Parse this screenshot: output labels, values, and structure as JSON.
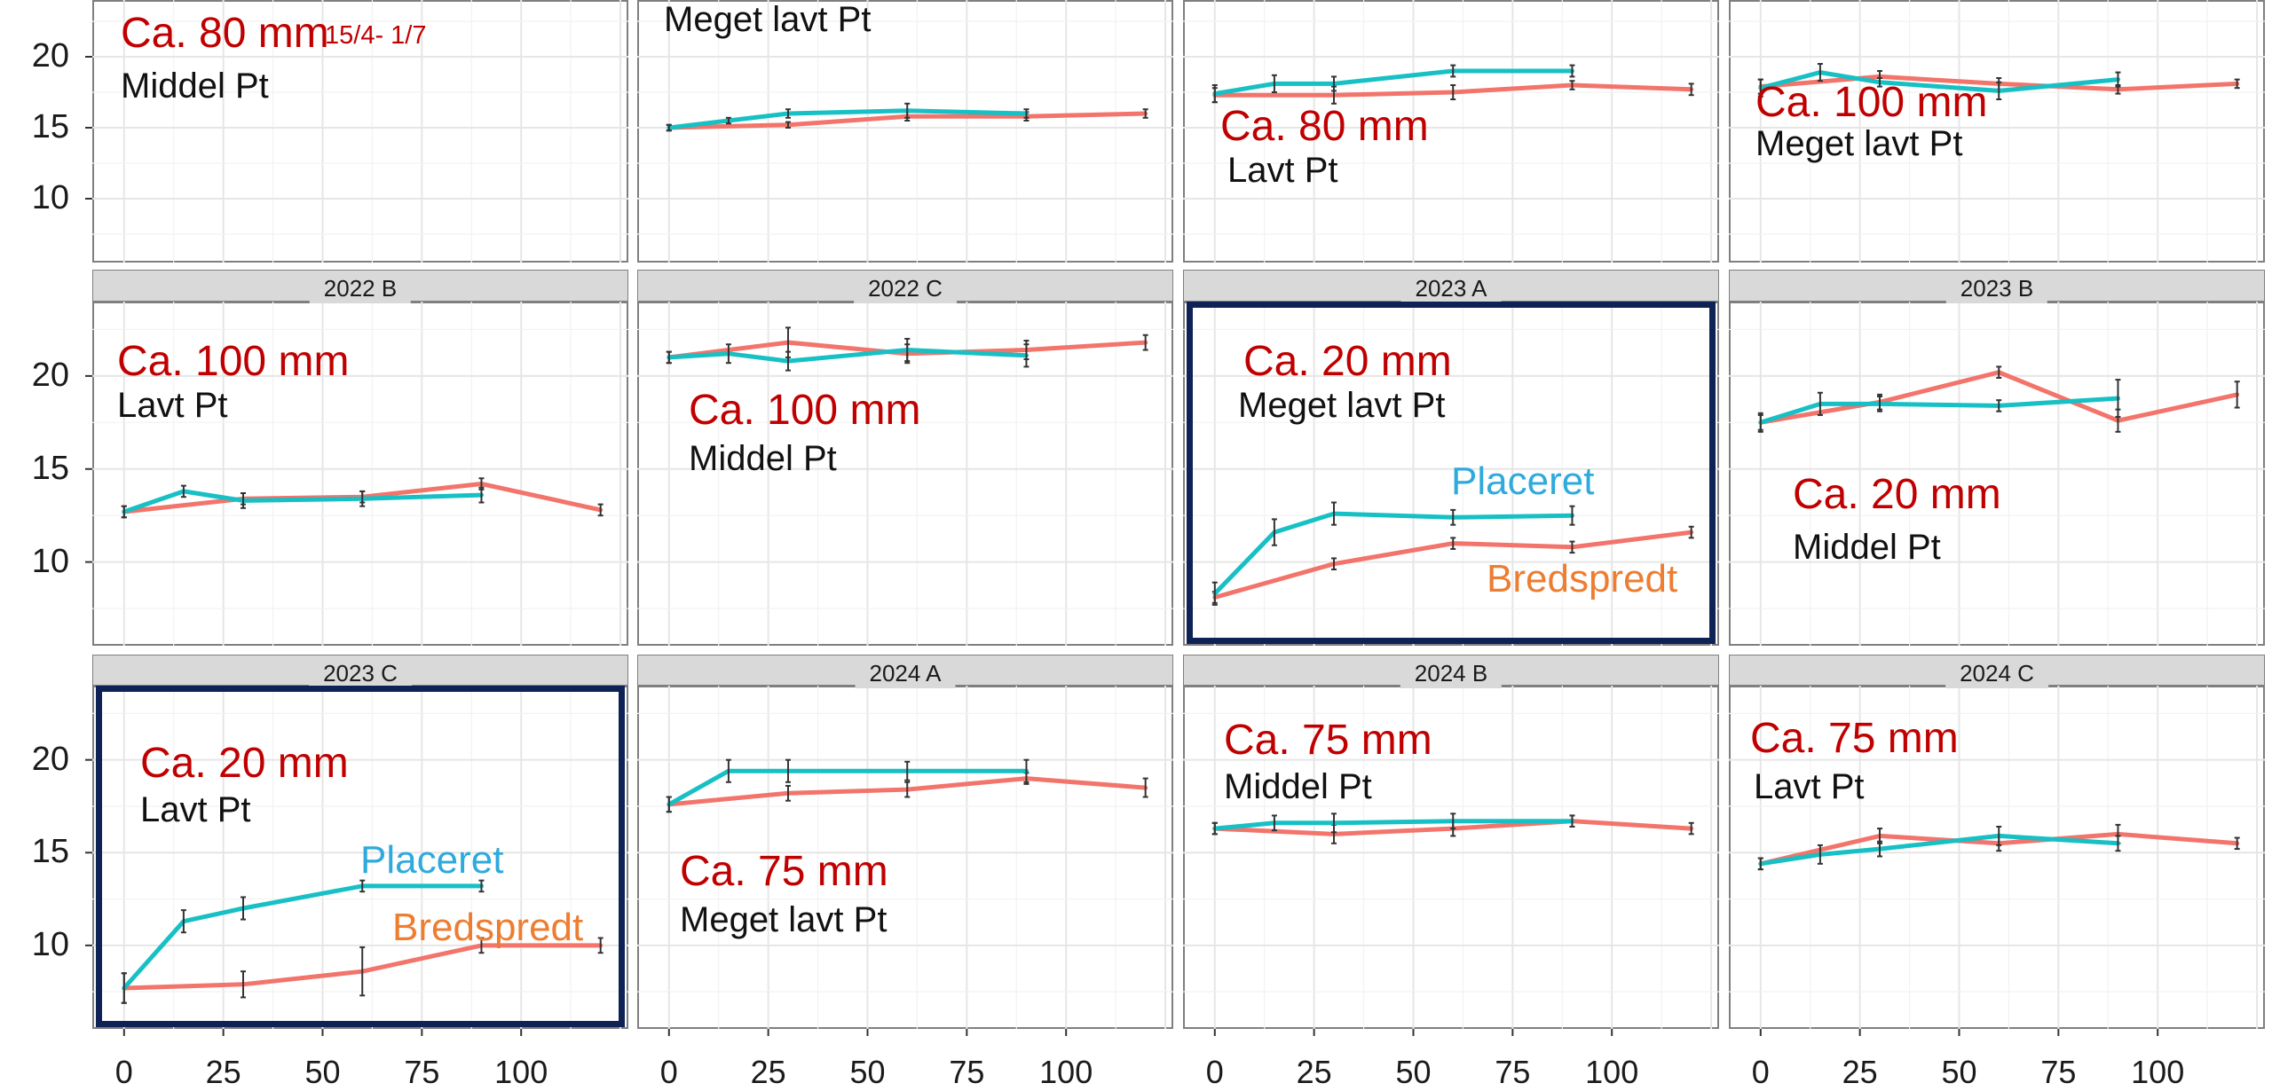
{
  "chart_data": {
    "type": "line",
    "layout": "facet-grid",
    "x_ticks": [
      0,
      25,
      50,
      75,
      100
    ],
    "y_ticks": [
      10,
      15,
      20
    ],
    "xlim": [
      -8,
      127
    ],
    "ylim": [
      5.5,
      24
    ],
    "grid": true,
    "legend": "none",
    "colors": {
      "Placeret": "#16c0c4",
      "Bredspredt": "#f2746b",
      "highlight": "#0f2256"
    },
    "panels": [
      {
        "row": 0,
        "col": 0,
        "strip": "",
        "annotations": [
          {
            "text": "Ca. 80 mm",
            "style": "red"
          },
          {
            "text": "15/4- 1/7",
            "style": "date"
          },
          {
            "text": "Middel Pt",
            "style": "black"
          }
        ],
        "series": []
      },
      {
        "row": 0,
        "col": 1,
        "strip": "",
        "annotations": [
          {
            "text": "Meget lavt Pt",
            "style": "black"
          }
        ],
        "series": [
          {
            "name": "Placeret",
            "x": [
              0,
              15,
              30,
              60,
              90
            ],
            "y": [
              15.0,
              15.5,
              16.0,
              16.2,
              16.0
            ],
            "err": [
              0.2,
              0.2,
              0.3,
              0.5,
              0.3
            ]
          },
          {
            "name": "Bredspredt",
            "x": [
              0,
              30,
              60,
              90,
              120
            ],
            "y": [
              15.0,
              15.2,
              15.8,
              15.8,
              16.0
            ],
            "err": [
              0.2,
              0.2,
              0.3,
              0.3,
              0.3
            ]
          }
        ]
      },
      {
        "row": 0,
        "col": 2,
        "strip": "",
        "annotations": [
          {
            "text": "Ca. 80 mm",
            "style": "red"
          },
          {
            "text": "Lavt Pt",
            "style": "black"
          }
        ],
        "series": [
          {
            "name": "Placeret",
            "x": [
              0,
              15,
              30,
              60,
              90
            ],
            "y": [
              17.4,
              18.1,
              18.1,
              19.0,
              19.0
            ],
            "err": [
              0.6,
              0.6,
              0.5,
              0.4,
              0.4
            ]
          },
          {
            "name": "Bredspredt",
            "x": [
              0,
              30,
              60,
              90,
              120
            ],
            "y": [
              17.3,
              17.3,
              17.5,
              18.0,
              17.7
            ],
            "err": [
              0.5,
              0.6,
              0.5,
              0.3,
              0.4
            ]
          }
        ]
      },
      {
        "row": 0,
        "col": 3,
        "strip": "",
        "annotations": [
          {
            "text": "Ca. 100 mm",
            "style": "red"
          },
          {
            "text": "Meget lavt Pt",
            "style": "black"
          }
        ],
        "series": [
          {
            "name": "Placeret",
            "x": [
              0,
              15,
              30,
              60,
              90
            ],
            "y": [
              17.8,
              18.9,
              18.2,
              17.6,
              18.4
            ],
            "err": [
              0.6,
              0.6,
              0.3,
              0.6,
              0.5
            ]
          },
          {
            "name": "Bredspredt",
            "x": [
              0,
              30,
              60,
              90,
              120
            ],
            "y": [
              17.9,
              18.6,
              18.1,
              17.7,
              18.1
            ],
            "err": [
              0.5,
              0.4,
              0.4,
              0.3,
              0.3
            ]
          }
        ]
      },
      {
        "row": 1,
        "col": 0,
        "strip": "2022 B",
        "annotations": [
          {
            "text": "Ca. 100 mm",
            "style": "red"
          },
          {
            "text": "Lavt Pt",
            "style": "black"
          }
        ],
        "series": [
          {
            "name": "Placeret",
            "x": [
              0,
              15,
              30,
              60,
              90
            ],
            "y": [
              12.7,
              13.8,
              13.3,
              13.4,
              13.6
            ],
            "err": [
              0.3,
              0.3,
              0.4,
              0.4,
              0.4
            ]
          },
          {
            "name": "Bredspredt",
            "x": [
              0,
              30,
              60,
              90,
              120
            ],
            "y": [
              12.7,
              13.4,
              13.5,
              14.2,
              12.8
            ],
            "err": [
              0.3,
              0.3,
              0.3,
              0.3,
              0.3
            ]
          }
        ]
      },
      {
        "row": 1,
        "col": 1,
        "strip": "2022 C",
        "annotations": [
          {
            "text": "Ca. 100 mm",
            "style": "red"
          },
          {
            "text": "Middel Pt",
            "style": "black"
          }
        ],
        "series": [
          {
            "name": "Placeret",
            "x": [
              0,
              15,
              30,
              60,
              90
            ],
            "y": [
              21.0,
              21.2,
              20.8,
              21.4,
              21.1
            ],
            "err": [
              0.3,
              0.5,
              0.5,
              0.6,
              0.6
            ]
          },
          {
            "name": "Bredspredt",
            "x": [
              0,
              30,
              60,
              90,
              120
            ],
            "y": [
              21.0,
              21.8,
              21.2,
              21.4,
              21.8
            ],
            "err": [
              0.3,
              0.8,
              0.5,
              0.5,
              0.4
            ]
          }
        ]
      },
      {
        "row": 1,
        "col": 2,
        "strip": "2023 A",
        "highlight": true,
        "annotations": [
          {
            "text": "Ca. 20 mm",
            "style": "red"
          },
          {
            "text": "Meget lavt Pt",
            "style": "black"
          },
          {
            "text": "Placeret",
            "style": "blue"
          },
          {
            "text": "Bredspredt",
            "style": "orange"
          }
        ],
        "series": [
          {
            "name": "Placeret",
            "x": [
              0,
              15,
              30,
              60,
              90
            ],
            "y": [
              8.3,
              11.6,
              12.6,
              12.4,
              12.5
            ],
            "err": [
              0.6,
              0.7,
              0.6,
              0.4,
              0.5
            ]
          },
          {
            "name": "Bredspredt",
            "x": [
              0,
              30,
              60,
              90,
              120
            ],
            "y": [
              8.1,
              9.9,
              11.0,
              10.8,
              11.6
            ],
            "err": [
              0.3,
              0.3,
              0.3,
              0.3,
              0.3
            ]
          }
        ]
      },
      {
        "row": 1,
        "col": 3,
        "strip": "2023 B",
        "annotations": [
          {
            "text": "Ca. 20 mm",
            "style": "red"
          },
          {
            "text": "Middel Pt",
            "style": "black"
          }
        ],
        "series": [
          {
            "name": "Placeret",
            "x": [
              0,
              15,
              30,
              60,
              90
            ],
            "y": [
              17.5,
              18.5,
              18.5,
              18.4,
              18.8
            ],
            "err": [
              0.5,
              0.6,
              0.4,
              0.3,
              1.0
            ]
          },
          {
            "name": "Bredspredt",
            "x": [
              0,
              30,
              60,
              90,
              120
            ],
            "y": [
              17.5,
              18.6,
              20.2,
              17.6,
              19.0
            ],
            "err": [
              0.4,
              0.4,
              0.3,
              0.6,
              0.7
            ]
          }
        ]
      },
      {
        "row": 2,
        "col": 0,
        "strip": "2023 C",
        "highlight": true,
        "annotations": [
          {
            "text": "Ca. 20 mm",
            "style": "red"
          },
          {
            "text": "Lavt Pt",
            "style": "black"
          },
          {
            "text": "Placeret",
            "style": "blue"
          },
          {
            "text": "Bredspredt",
            "style": "orange"
          }
        ],
        "series": [
          {
            "name": "Placeret",
            "x": [
              0,
              15,
              30,
              60,
              90
            ],
            "y": [
              7.7,
              11.3,
              12.0,
              13.2,
              13.2
            ],
            "err": [
              0.8,
              0.6,
              0.6,
              0.3,
              0.3
            ]
          },
          {
            "name": "Bredspredt",
            "x": [
              0,
              30,
              60,
              90,
              120
            ],
            "y": [
              7.7,
              7.9,
              8.6,
              10.0,
              10.0
            ],
            "err": [
              0.8,
              0.7,
              1.3,
              0.4,
              0.4
            ]
          }
        ]
      },
      {
        "row": 2,
        "col": 1,
        "strip": "2024 A",
        "annotations": [
          {
            "text": "Ca. 75 mm",
            "style": "red"
          },
          {
            "text": "Meget lavt Pt",
            "style": "black"
          }
        ],
        "series": [
          {
            "name": "Placeret",
            "x": [
              0,
              15,
              30,
              60,
              90
            ],
            "y": [
              17.6,
              19.4,
              19.4,
              19.4,
              19.4
            ],
            "err": [
              0.4,
              0.6,
              0.6,
              0.5,
              0.6
            ]
          },
          {
            "name": "Bredspredt",
            "x": [
              0,
              30,
              60,
              90,
              120
            ],
            "y": [
              17.6,
              18.2,
              18.4,
              19.0,
              18.5
            ],
            "err": [
              0.4,
              0.4,
              0.4,
              0.3,
              0.5
            ]
          }
        ]
      },
      {
        "row": 2,
        "col": 2,
        "strip": "2024 B",
        "annotations": [
          {
            "text": "Ca. 75 mm",
            "style": "red"
          },
          {
            "text": "Middel Pt",
            "style": "black"
          }
        ],
        "series": [
          {
            "name": "Placeret",
            "x": [
              0,
              15,
              30,
              60,
              90
            ],
            "y": [
              16.3,
              16.6,
              16.6,
              16.7,
              16.7
            ],
            "err": [
              0.3,
              0.4,
              0.5,
              0.4,
              0.3
            ]
          },
          {
            "name": "Bredspredt",
            "x": [
              0,
              30,
              60,
              90,
              120
            ],
            "y": [
              16.3,
              16.0,
              16.3,
              16.7,
              16.3
            ],
            "err": [
              0.3,
              0.5,
              0.4,
              0.3,
              0.3
            ]
          }
        ]
      },
      {
        "row": 2,
        "col": 3,
        "strip": "2024 C",
        "annotations": [
          {
            "text": "Ca. 75 mm",
            "style": "red"
          },
          {
            "text": "Lavt Pt",
            "style": "black"
          }
        ],
        "series": [
          {
            "name": "Placeret",
            "x": [
              0,
              15,
              30,
              60,
              90
            ],
            "y": [
              14.4,
              14.9,
              15.2,
              15.9,
              15.5
            ],
            "err": [
              0.3,
              0.5,
              0.4,
              0.5,
              0.4
            ]
          },
          {
            "name": "Bredspredt",
            "x": [
              0,
              30,
              60,
              90,
              120
            ],
            "y": [
              14.4,
              15.9,
              15.5,
              16.0,
              15.5
            ],
            "err": [
              0.3,
              0.4,
              0.4,
              0.5,
              0.3
            ]
          }
        ]
      }
    ]
  }
}
